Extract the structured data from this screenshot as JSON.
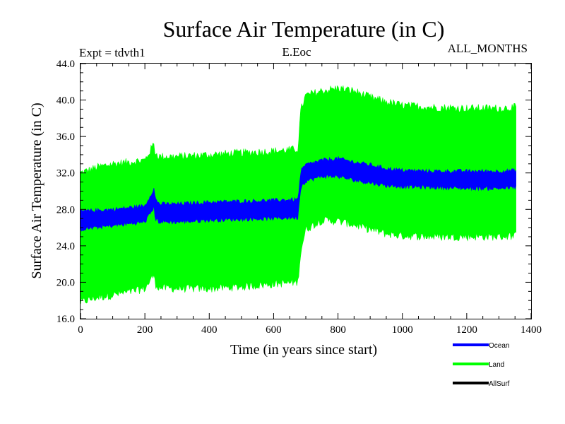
{
  "chart_data": {
    "type": "area",
    "title": "Surface Air Temperature (in C)",
    "subtitle_left": "Expt = tdvth1",
    "subtitle_center": "E.Eoc",
    "subtitle_right": "ALL_MONTHS",
    "xlabel": "Time (in years since start)",
    "ylabel": "Surface Air Temperature (in C)",
    "xlim": [
      0,
      1400
    ],
    "ylim": [
      16.0,
      44.0
    ],
    "x_ticks": [
      0,
      200,
      400,
      600,
      800,
      1000,
      1200,
      1400
    ],
    "y_ticks": [
      16.0,
      20.0,
      24.0,
      28.0,
      32.0,
      36.0,
      40.0,
      44.0
    ],
    "x_tick_labels": [
      "0",
      "200",
      "400",
      "600",
      "800",
      "1000",
      "1200",
      "1400"
    ],
    "y_tick_labels": [
      "16.0",
      "20.0",
      "24.0",
      "28.0",
      "32.0",
      "36.0",
      "40.0",
      "44.0"
    ],
    "legend_position": "bottom-right",
    "series": [
      {
        "name": "Land",
        "color": "#00ff00",
        "x": [
          0,
          50,
          100,
          150,
          200,
          228,
          232,
          245,
          300,
          400,
          500,
          600,
          675,
          685,
          700,
          750,
          800,
          850,
          900,
          950,
          1000,
          1100,
          1200,
          1300,
          1355
        ],
        "upper": [
          32.0,
          32.6,
          33.0,
          33.2,
          33.4,
          35.2,
          34.2,
          33.8,
          33.8,
          34.0,
          34.2,
          34.4,
          34.6,
          39.0,
          40.5,
          41.0,
          41.3,
          41.0,
          40.3,
          39.8,
          39.4,
          39.2,
          39.1,
          39.1,
          39.2
        ],
        "lower": [
          17.8,
          18.3,
          18.6,
          18.9,
          19.3,
          20.8,
          19.8,
          19.4,
          19.3,
          19.3,
          19.5,
          19.8,
          20.0,
          23.5,
          25.8,
          26.8,
          26.7,
          26.3,
          25.8,
          25.3,
          25.1,
          25.0,
          25.0,
          25.0,
          25.1
        ]
      },
      {
        "name": "Ocean",
        "color": "#0000ff",
        "x": [
          0,
          50,
          100,
          150,
          200,
          228,
          232,
          245,
          300,
          400,
          500,
          600,
          675,
          685,
          700,
          750,
          800,
          850,
          900,
          950,
          1000,
          1100,
          1200,
          1300,
          1355
        ],
        "upper": [
          27.8,
          27.9,
          28.0,
          28.2,
          28.4,
          30.3,
          29.2,
          28.6,
          28.6,
          28.8,
          28.9,
          29.0,
          29.1,
          32.2,
          32.9,
          33.4,
          33.6,
          33.2,
          32.9,
          32.5,
          32.3,
          32.2,
          32.2,
          32.2,
          32.3
        ],
        "lower": [
          25.8,
          26.0,
          26.2,
          26.4,
          26.6,
          28.2,
          27.0,
          26.6,
          26.6,
          26.8,
          26.9,
          27.0,
          27.1,
          30.5,
          31.1,
          31.6,
          31.6,
          31.2,
          30.9,
          30.6,
          30.5,
          30.4,
          30.3,
          30.3,
          30.4
        ]
      },
      {
        "name": "AllSurf",
        "color": "#000000",
        "x": [],
        "upper": [],
        "lower": []
      }
    ]
  }
}
